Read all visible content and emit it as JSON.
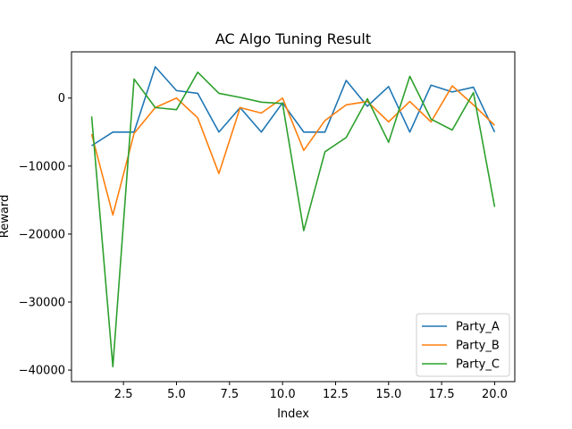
{
  "chart_data": {
    "type": "line",
    "title": "AC Algo Tuning Result",
    "xlabel": "Index",
    "ylabel": "Reward",
    "xlim": [
      0.05,
      20.95
    ],
    "ylim": [
      -41700,
      6800
    ],
    "x_ticks": [
      2.5,
      5.0,
      7.5,
      10.0,
      12.5,
      15.0,
      17.5,
      20.0
    ],
    "x_tick_labels": [
      "2.5",
      "5.0",
      "7.5",
      "10.0",
      "12.5",
      "15.0",
      "17.5",
      "20.0"
    ],
    "y_ticks": [
      0,
      -10000,
      -20000,
      -30000,
      -40000
    ],
    "y_tick_labels": [
      "0",
      "−10000",
      "−20000",
      "−30000",
      "−40000"
    ],
    "grid": false,
    "legend_position": "bottom-right",
    "x": [
      1,
      2,
      3,
      4,
      5,
      6,
      7,
      8,
      9,
      10,
      11,
      12,
      13,
      14,
      15,
      16,
      17,
      18,
      19,
      20
    ],
    "series": [
      {
        "name": "Party_A",
        "color": "#1f77b4",
        "values": [
          -7000,
          -5000,
          -5000,
          4600,
          1100,
          700,
          -5000,
          -1400,
          -5000,
          -700,
          -5000,
          -5000,
          2600,
          -1200,
          1700,
          -5000,
          1900,
          900,
          1600,
          -5000
        ]
      },
      {
        "name": "Party_B",
        "color": "#ff7f0e",
        "values": [
          -5300,
          -17200,
          -5200,
          -1400,
          0,
          -2900,
          -11100,
          -1400,
          -2200,
          0,
          -7700,
          -3300,
          -1000,
          -500,
          -3500,
          -500,
          -3500,
          1800,
          -1000,
          -4000
        ]
      },
      {
        "name": "Party_C",
        "color": "#2ca02c",
        "values": [
          -2700,
          -39500,
          2800,
          -1400,
          -1700,
          3800,
          700,
          100,
          -600,
          -800,
          -19500,
          -7900,
          -5800,
          -100,
          -6500,
          3200,
          -3100,
          -4700,
          800,
          -16000
        ]
      }
    ]
  }
}
